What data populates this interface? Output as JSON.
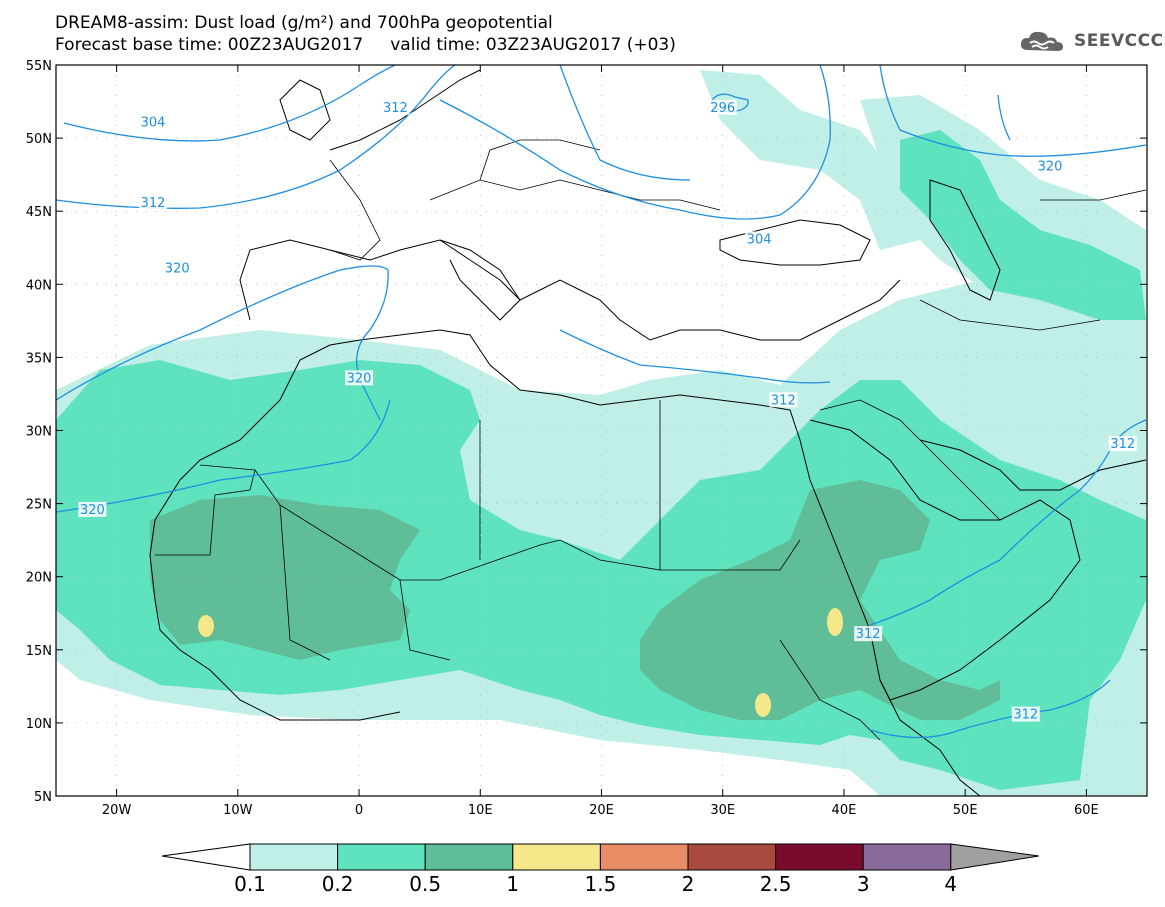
{
  "title": {
    "line1": "DREAM8-assim: Dust load (g/m²) and 700hPa geopotential",
    "line2": "Forecast base time: 00Z23AUG2017     valid time: 03Z23AUG2017 (+03)"
  },
  "logo": {
    "icon": "cloud-icon",
    "text": "SEEVCCC"
  },
  "map": {
    "lon_range": [
      -25,
      65
    ],
    "lat_range": [
      5,
      55
    ],
    "lat_ticks": [
      "55N",
      "50N",
      "45N",
      "40N",
      "35N",
      "30N",
      "25N",
      "20N",
      "15N",
      "10N",
      "5N"
    ],
    "lon_ticks": [
      "20W",
      "10W",
      "0",
      "10E",
      "20E",
      "30E",
      "40E",
      "50E",
      "60E"
    ],
    "contour_labels": [
      {
        "text": "304",
        "lon": -17,
        "lat": 51
      },
      {
        "text": "312",
        "lon": -17,
        "lat": 45.5
      },
      {
        "text": "312",
        "lon": 3,
        "lat": 52
      },
      {
        "text": "296",
        "lon": 30,
        "lat": 52
      },
      {
        "text": "304",
        "lon": 33,
        "lat": 43
      },
      {
        "text": "320",
        "lon": 57,
        "lat": 48
      },
      {
        "text": "320",
        "lon": -15,
        "lat": 41
      },
      {
        "text": "320",
        "lon": 0,
        "lat": 33.5
      },
      {
        "text": "312",
        "lon": 35,
        "lat": 32
      },
      {
        "text": "320",
        "lon": -22,
        "lat": 24.5
      },
      {
        "text": "312",
        "lon": 42,
        "lat": 16
      },
      {
        "text": "312",
        "lon": 63,
        "lat": 29
      },
      {
        "text": "312",
        "lon": 55,
        "lat": 10.5
      }
    ]
  },
  "colorbar": {
    "labels": [
      "0.1",
      "0.2",
      "0.5",
      "1",
      "1.5",
      "2",
      "2.5",
      "3",
      "4"
    ],
    "colors": [
      "#ffffff",
      "#bfefe6",
      "#5fe3bf",
      "#5fbd98",
      "#f4e88a",
      "#e88d66",
      "#a84a3e",
      "#7b0b2c",
      "#8b6a9c",
      "#a0a0a0"
    ]
  },
  "colors": {
    "very_light": "#bfefe6",
    "light": "#5fe3bf",
    "medium": "#5fbd98",
    "yellow": "#f4e88a",
    "contour": "#1f8fe0",
    "coast": "#000000"
  }
}
